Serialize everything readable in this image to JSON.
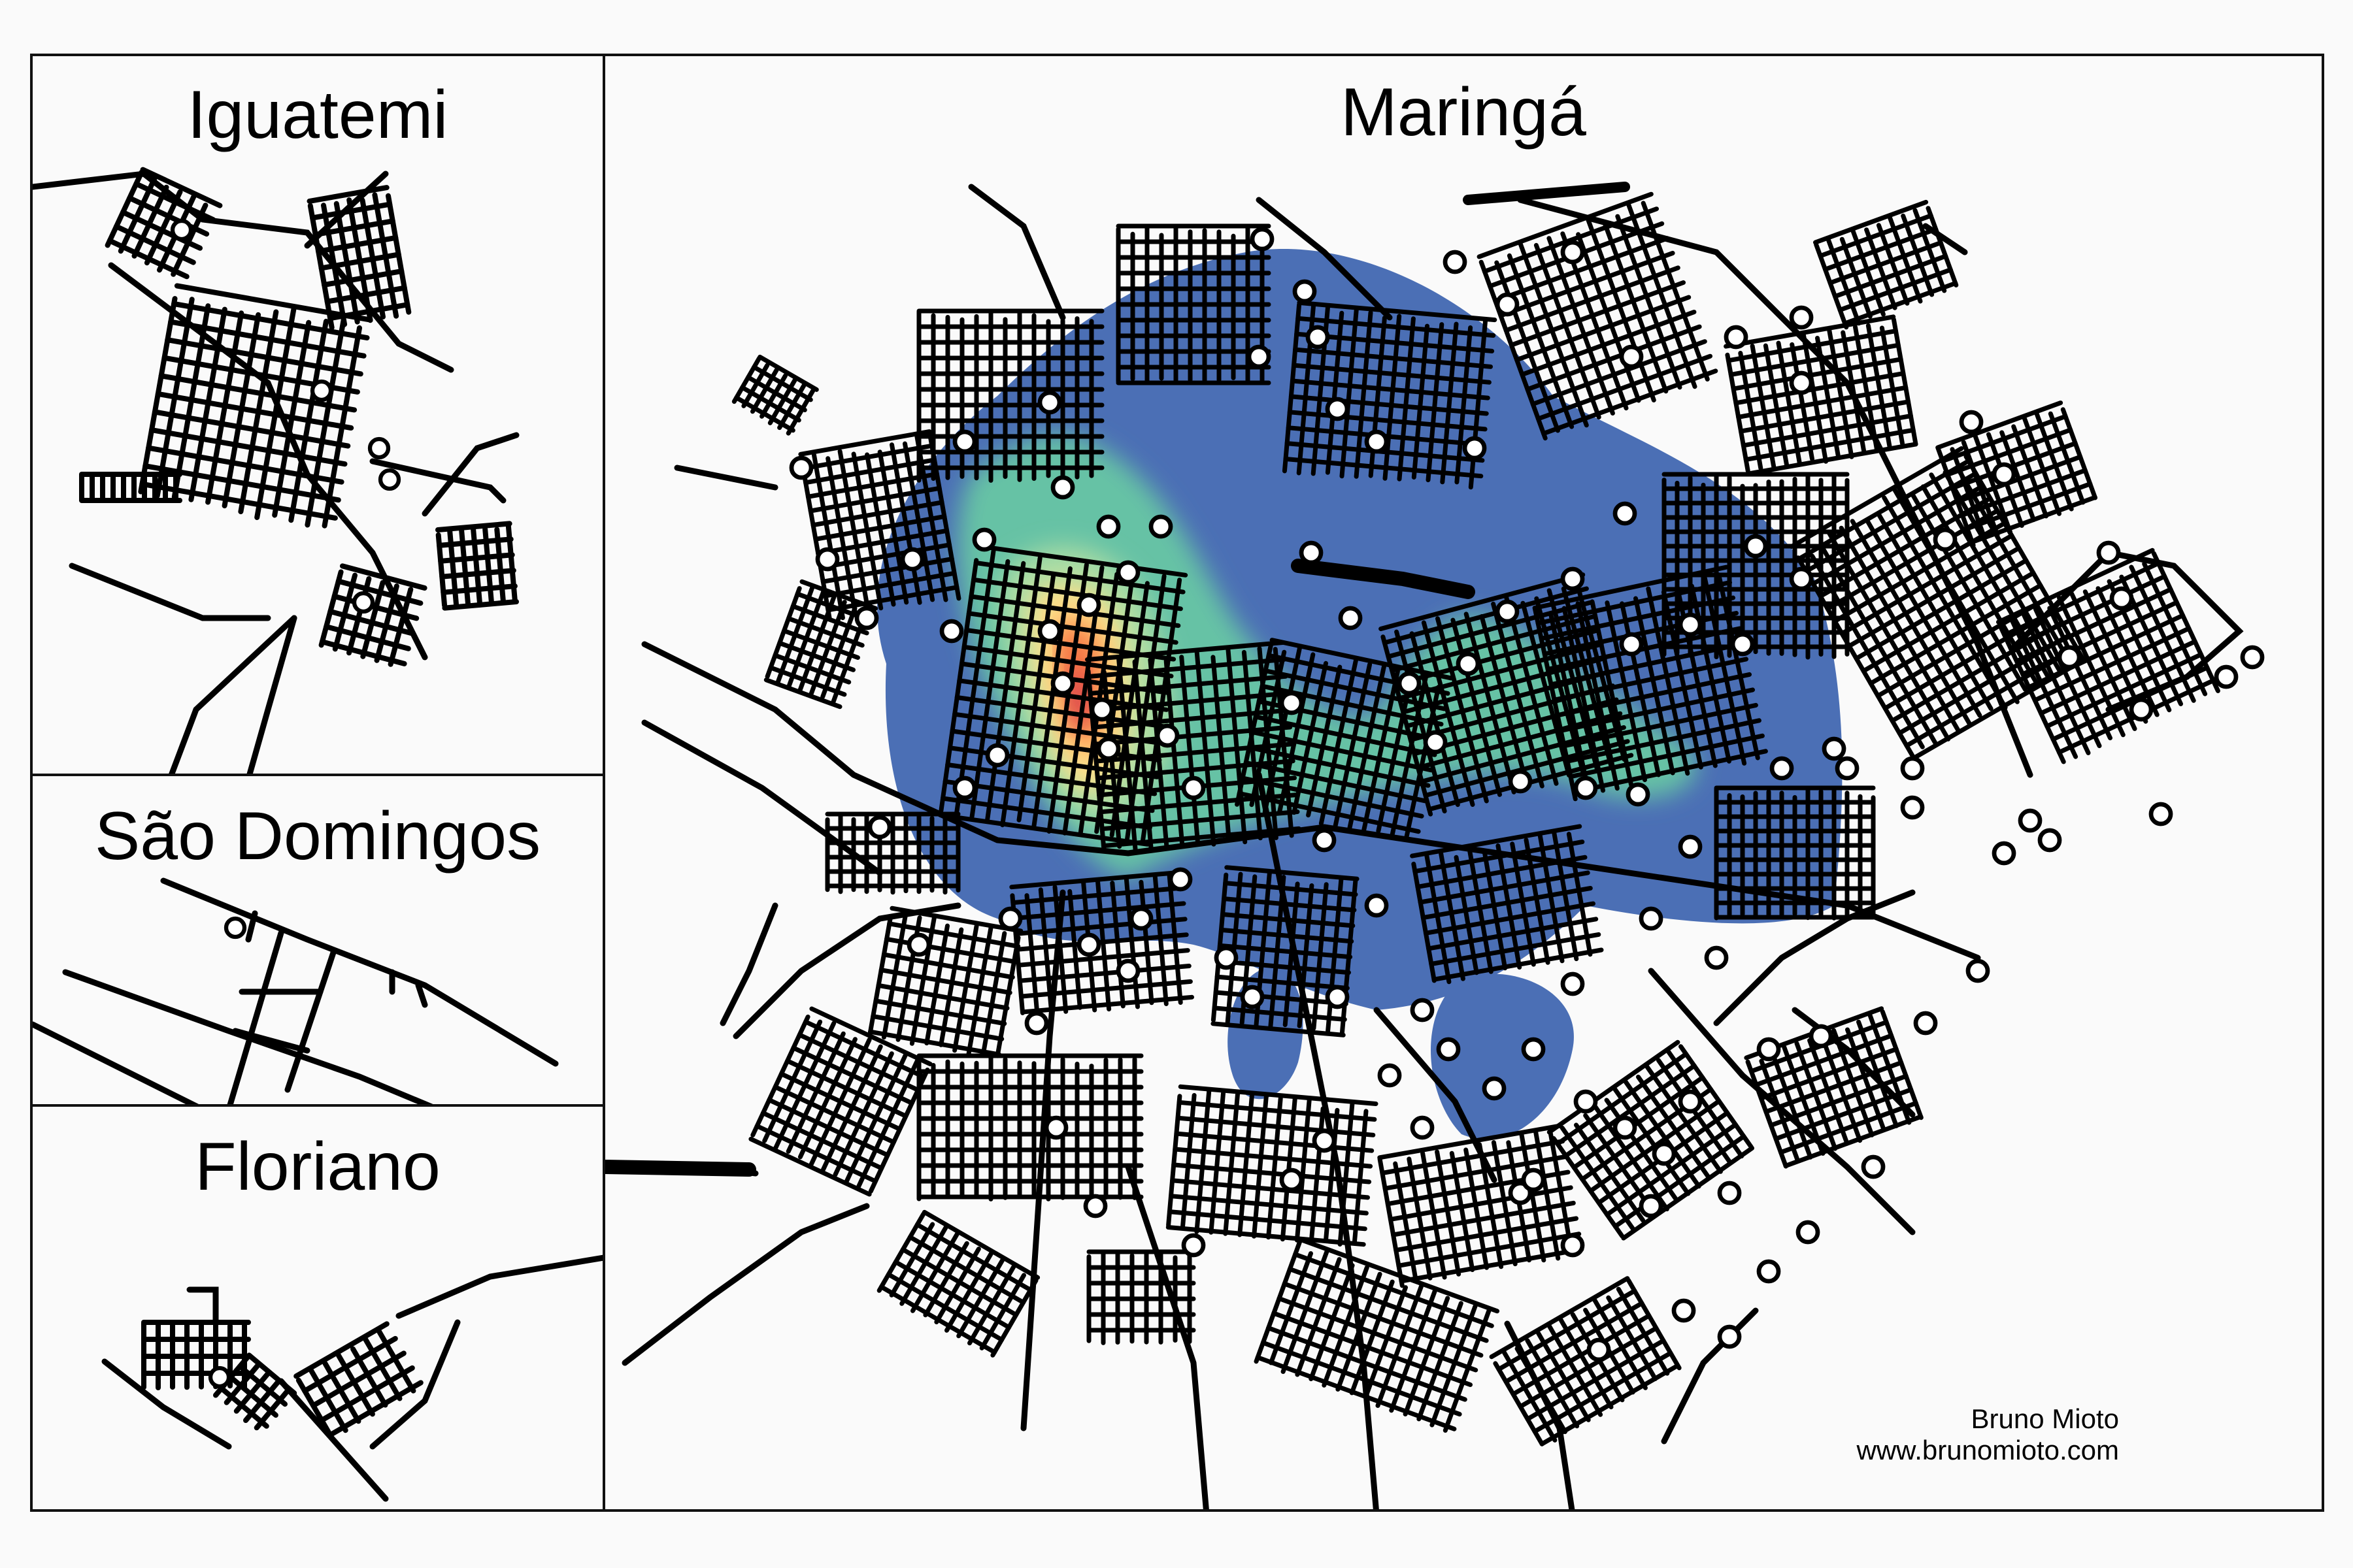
{
  "panels": {
    "iguatemi": {
      "title": "Iguatemi"
    },
    "sao_domingos": {
      "title": "São Domingos"
    },
    "floriano": {
      "title": "Floriano"
    },
    "maringa": {
      "title": "Maringá"
    }
  },
  "credit": {
    "author": "Bruno Mioto",
    "website": "www.brunomioto.com"
  },
  "style": {
    "road_color": "#000000",
    "point_fill": "#ffffff",
    "heat_colors": [
      "#4b6fb5",
      "#66c2a5",
      "#abdda4",
      "#fee08b",
      "#fdae61",
      "#f46d43",
      "#d53e4f"
    ]
  }
}
